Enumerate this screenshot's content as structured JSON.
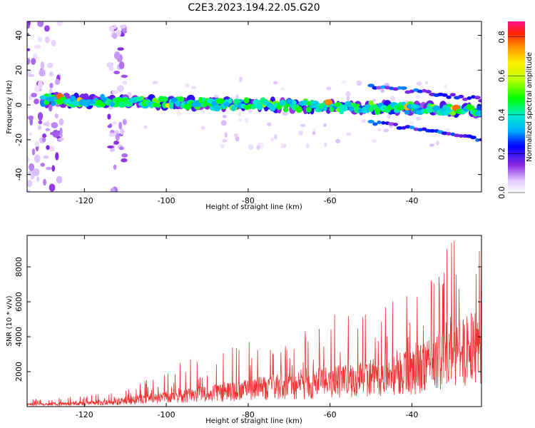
{
  "title": "C2E3.2023.194.22.05.G20",
  "chart_data": [
    {
      "type": "heatmap",
      "xlabel": "Height of straight line (km)",
      "ylabel": "Frequency (Hz)",
      "xlim": [
        -134,
        -23
      ],
      "ylim": [
        -50,
        48
      ],
      "xticks": [
        -120,
        -100,
        -80,
        -60,
        -40
      ],
      "yticks": [
        -40,
        -20,
        0,
        20,
        40
      ],
      "colorbar": {
        "label": "Normalized spectral amplitude",
        "range": [
          0.0,
          0.88
        ],
        "ticks": [
          0.0,
          0.2,
          0.4,
          0.6,
          0.8
        ],
        "placement": "right"
      },
      "features": {
        "main_band": {
          "x_range": [
            -130,
            -23
          ],
          "frequency_center": [
            3,
            -3
          ]
        },
        "upper_branch": {
          "x_range": [
            -50,
            -23
          ],
          "frequency_center": [
            11,
            3
          ]
        },
        "lower_branch": {
          "x_range": [
            -50,
            -23
          ],
          "frequency_center": [
            -10,
            -20
          ]
        },
        "scatter_columns_x": [
          -130,
          -112
        ]
      },
      "grid": false
    },
    {
      "type": "line",
      "series": [
        {
          "color": "#ee3333"
        }
      ],
      "xlabel": "Height of straight line (km)",
      "ylabel": "SNR (10 * v/v)",
      "xlim": [
        -134,
        -23
      ],
      "ylim": [
        0,
        9800
      ],
      "xticks": [
        -120,
        -100,
        -80,
        -60,
        -40
      ],
      "yticks": [
        2000,
        4000,
        6000,
        8000
      ],
      "envelope": [
        {
          "x": -134,
          "noise": 120,
          "peak": 450
        },
        {
          "x": -120,
          "noise": 200,
          "peak": 600
        },
        {
          "x": -110,
          "noise": 350,
          "peak": 1100
        },
        {
          "x": -105,
          "noise": 500,
          "peak": 1500
        },
        {
          "x": -96,
          "noise": 650,
          "peak": 2600
        },
        {
          "x": -85,
          "noise": 900,
          "peak": 3300
        },
        {
          "x": -75,
          "noise": 1200,
          "peak": 4600
        },
        {
          "x": -62,
          "noise": 1500,
          "peak": 5300
        },
        {
          "x": -50,
          "noise": 1800,
          "peak": 6000
        },
        {
          "x": -40,
          "noise": 2200,
          "peak": 6400
        },
        {
          "x": -30,
          "noise": 3200,
          "peak": 9800
        },
        {
          "x": -23,
          "noise": 3800,
          "peak": 9200
        }
      ],
      "grid": false
    }
  ]
}
